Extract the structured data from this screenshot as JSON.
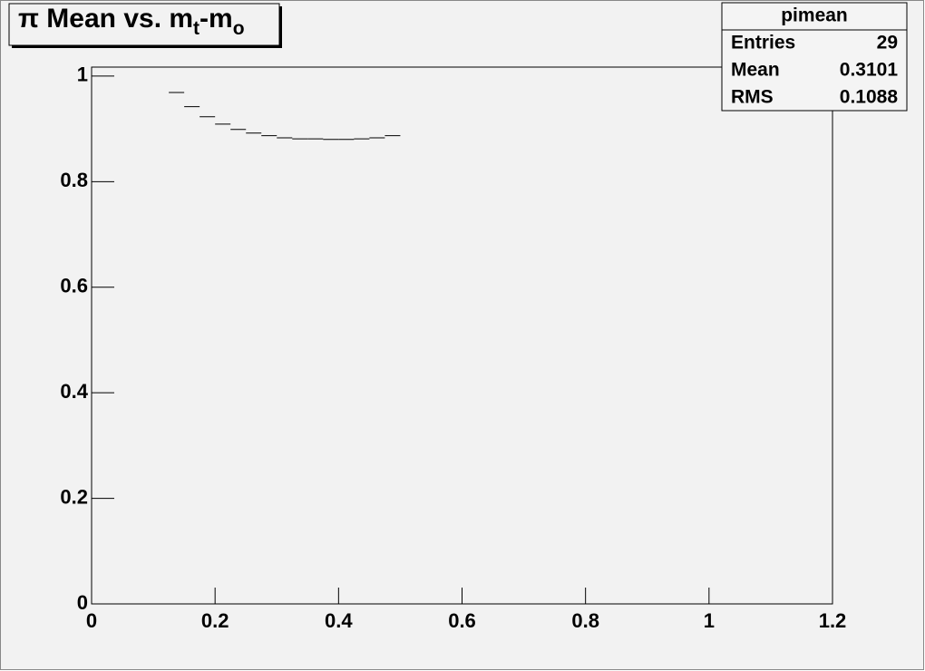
{
  "chart_data": {
    "type": "histogram",
    "title": [
      "π Mean vs. m",
      "t",
      "-m",
      "o"
    ],
    "bins": [
      0.125,
      0.15,
      0.175,
      0.2,
      0.225,
      0.25,
      0.275,
      0.3,
      0.325,
      0.35,
      0.375,
      0.4,
      0.425,
      0.45,
      0.475,
      0.5
    ],
    "counts": [
      0.969,
      0.942,
      0.923,
      0.909,
      0.899,
      0.892,
      0.887,
      0.883,
      0.881,
      0.881,
      0.88,
      0.88,
      0.881,
      0.883,
      0.887
    ],
    "color": "#000000",
    "xlim": [
      0,
      1.2
    ],
    "xticks": [
      0,
      0.2,
      0.4,
      0.6,
      0.8,
      1,
      1.2
    ],
    "ylim": [
      0,
      1.017
    ],
    "yticks": [
      0,
      0.2,
      0.4,
      0.6,
      0.8,
      1
    ],
    "stats": {
      "title": "pimean",
      "rows": [
        [
          "Entries",
          29
        ],
        [
          "Mean",
          0.3101
        ],
        [
          "RMS",
          0.1088
        ]
      ]
    }
  }
}
